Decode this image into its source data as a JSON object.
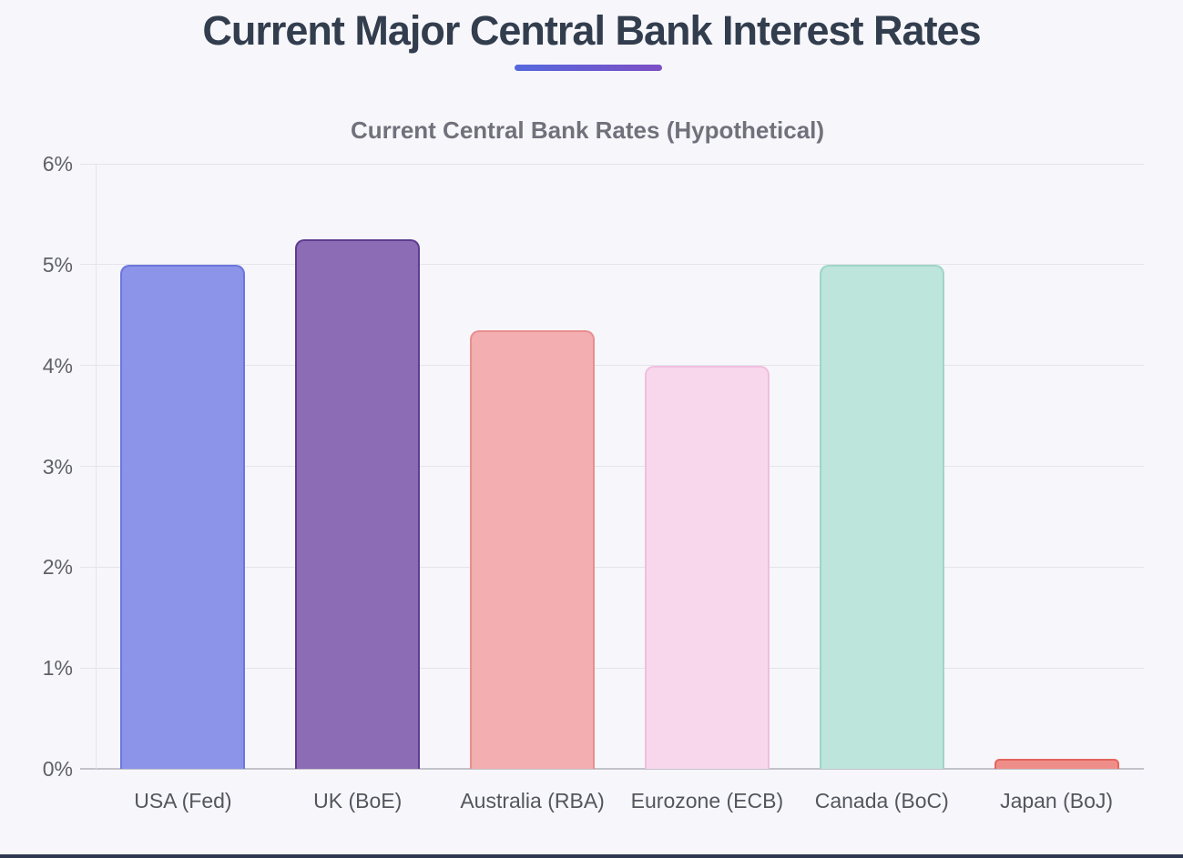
{
  "page": {
    "title": "Current Major Central Bank Interest Rates",
    "background": "#f7f7fb",
    "title_color": "#323d4e",
    "accent_gradient_left": "#5568dd",
    "accent_gradient_right": "#7e4fc5",
    "footer_bar_color": "#2e3850"
  },
  "chart_data": {
    "type": "bar",
    "title": "Current Central Bank Rates (Hypothetical)",
    "categories": [
      "USA (Fed)",
      "UK (BoE)",
      "Australia (RBA)",
      "Eurozone (ECB)",
      "Canada (BoC)",
      "Japan (BoJ)"
    ],
    "values": [
      5.0,
      5.25,
      4.35,
      4.0,
      5.0,
      0.1
    ],
    "unit": "%",
    "ylim": [
      0,
      6
    ],
    "ytick_step": 1,
    "ytick_labels": [
      "0%",
      "1%",
      "2%",
      "3%",
      "4%",
      "5%",
      "6%"
    ],
    "xlabel": "",
    "ylabel": "",
    "grid": true,
    "legend_position": "none",
    "bar_colors": [
      {
        "fill": "#8b94e8",
        "border": "#6b77dc"
      },
      {
        "fill": "#8b6cb5",
        "border": "#5e3d8f"
      },
      {
        "fill": "#f2aeb0",
        "border": "#e98e90"
      },
      {
        "fill": "#f8d7ec",
        "border": "#f0bfdf"
      },
      {
        "fill": "#bee5db",
        "border": "#9fd6c6"
      },
      {
        "fill": "#ef8e89",
        "border": "#e4665f"
      }
    ],
    "grid_color": "#e4e4ea",
    "axis_color": "#c2c2ca",
    "tick_text_color": "#5f6167",
    "title_color": "#70717b"
  }
}
